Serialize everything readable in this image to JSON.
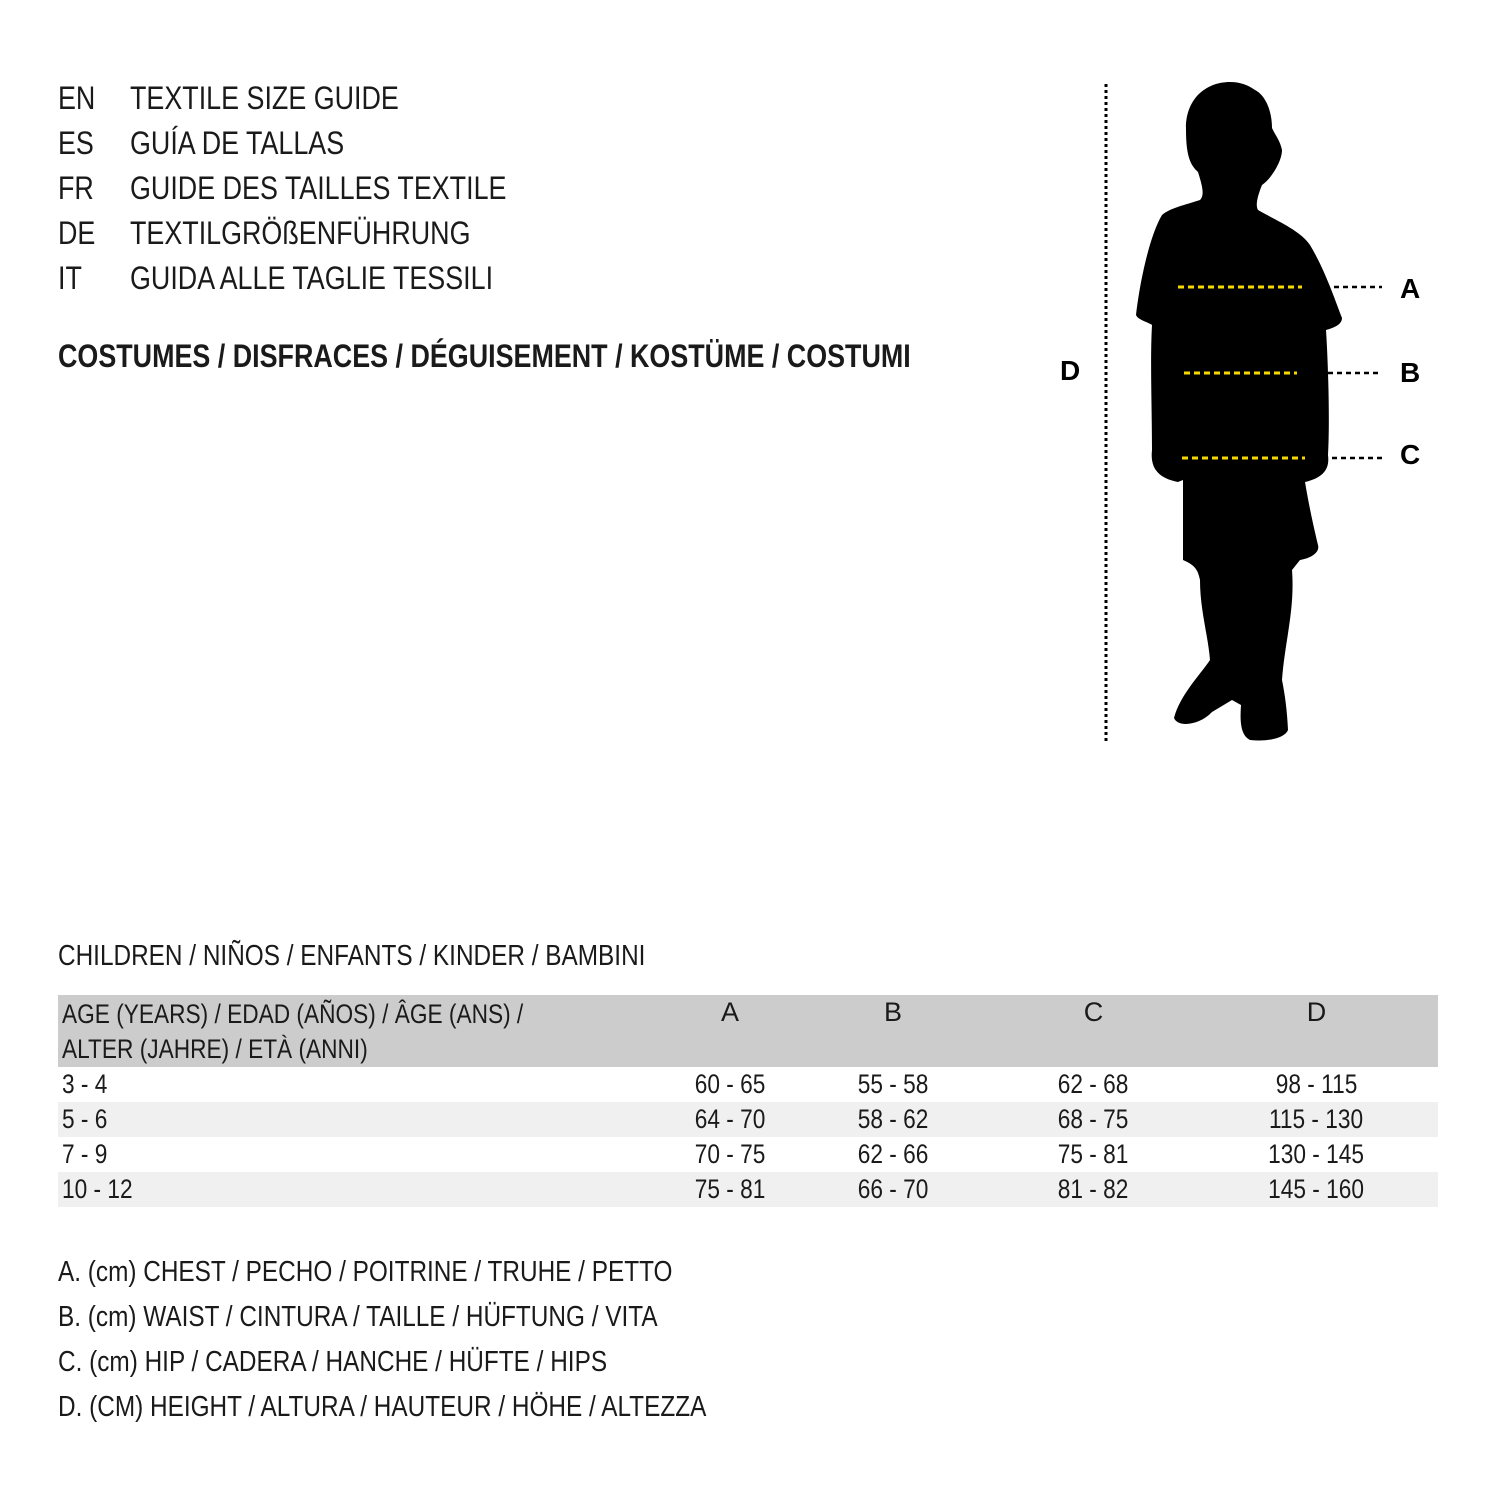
{
  "title_lines": [
    {
      "code": "EN",
      "text": "TEXTILE SIZE GUIDE"
    },
    {
      "code": "ES",
      "text": "GUÍA DE TALLAS"
    },
    {
      "code": "FR",
      "text": "GUIDE DES TAILLES TEXTILE"
    },
    {
      "code": "DE",
      "text": "TEXTILGRÖßENFÜHRUNG"
    },
    {
      "code": "IT",
      "text": "GUIDA ALLE TAGLIE TESSILI"
    }
  ],
  "category": "COSTUMES / DISFRACES / DÉGUISEMENT / KOSTÜME / COSTUMI",
  "figure": {
    "labels": {
      "a": "A",
      "b": "B",
      "c": "C",
      "d": "D"
    },
    "measure_line_color": "#f5d800",
    "silhouette_color": "#000000"
  },
  "table": {
    "caption": "CHILDREN / NIÑOS / ENFANTS / KINDER / BAMBINI",
    "header_line1": "AGE (YEARS) / EDAD (AÑOS) / ÂGE (ANS) /",
    "header_line2": "ALTER (JAHRE) / ETÀ (ANNI)",
    "columns": [
      "A",
      "B",
      "C",
      "D"
    ],
    "rows": [
      [
        "3 - 4",
        "60 - 65",
        "55 - 58",
        "62 - 68",
        "98 - 115"
      ],
      [
        "5 - 6",
        "64 - 70",
        "58 - 62",
        "68 - 75",
        "115 - 130"
      ],
      [
        "7 - 9",
        "70 - 75",
        "62 - 66",
        "75 - 81",
        "130 - 145"
      ],
      [
        "10 - 12",
        "75 - 81",
        "66 - 70",
        "81 - 82",
        "145 - 160"
      ]
    ]
  },
  "notes": [
    "A. (cm) CHEST / PECHO / POITRINE / TRUHE / PETTO",
    "B. (cm) WAIST / CINTURA / TAILLE / HÜFTUNG / VITA",
    "C. (cm) HIP / CADERA / HANCHE / HÜFTE / HIPS",
    "D. (CM) HEIGHT / ALTURA / HAUTEUR / HÖHE / ALTEZZA"
  ]
}
